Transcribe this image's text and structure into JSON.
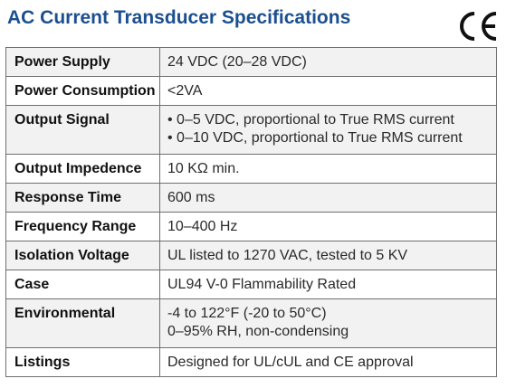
{
  "title": "AC Current Transducer Specifications",
  "cert_mark": "CE",
  "colors": {
    "title": "#1b4f8f",
    "row_shade": "#f2f2f2",
    "border": "#6f6f6f"
  },
  "specs": [
    {
      "label": "Power Supply",
      "value": [
        "24 VDC (20–28 VDC)"
      ]
    },
    {
      "label": "Power Consumption",
      "value": [
        "<2VA"
      ]
    },
    {
      "label": "Output Signal",
      "value": [
        "• 0–5 VDC, proportional to True RMS current",
        "• 0–10 VDC, proportional to True RMS current"
      ]
    },
    {
      "label": "Output Impedence",
      "value": [
        "10 KΩ min."
      ]
    },
    {
      "label": "Response Time",
      "value": [
        "600 ms"
      ]
    },
    {
      "label": "Frequency Range",
      "value": [
        "10–400 Hz"
      ]
    },
    {
      "label": "Isolation Voltage",
      "value": [
        "UL listed to 1270 VAC, tested to 5 KV"
      ]
    },
    {
      "label": "Case",
      "value": [
        "UL94 V-0 Flammability Rated"
      ]
    },
    {
      "label": "Environmental",
      "value": [
        "-4 to 122°F (-20 to 50°C)",
        "0–95% RH, non-condensing"
      ]
    },
    {
      "label": "Listings",
      "value": [
        "Designed for UL/cUL and CE approval"
      ]
    }
  ]
}
